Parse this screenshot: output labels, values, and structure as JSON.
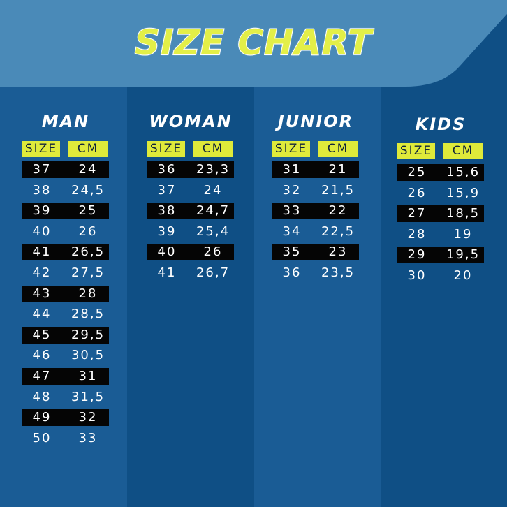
{
  "title": "SIZE CHART",
  "colors": {
    "background": "#0f4f85",
    "banner": "#4a8ab8",
    "accent_yellow": "#dfea3a",
    "row_dark": "#050505",
    "text": "#ffffff"
  },
  "header_labels": {
    "size": "SIZE",
    "cm": "CM"
  },
  "columns": [
    {
      "title": "MAN",
      "rows": [
        [
          "37",
          "24"
        ],
        [
          "38",
          "24,5"
        ],
        [
          "39",
          "25"
        ],
        [
          "40",
          "26"
        ],
        [
          "41",
          "26,5"
        ],
        [
          "42",
          "27,5"
        ],
        [
          "43",
          "28"
        ],
        [
          "44",
          "28,5"
        ],
        [
          "45",
          "29,5"
        ],
        [
          "46",
          "30,5"
        ],
        [
          "47",
          "31"
        ],
        [
          "48",
          "31,5"
        ],
        [
          "49",
          "32"
        ],
        [
          "50",
          "33"
        ]
      ]
    },
    {
      "title": "WOMAN",
      "rows": [
        [
          "36",
          "23,3"
        ],
        [
          "37",
          "24"
        ],
        [
          "38",
          "24,7"
        ],
        [
          "39",
          "25,4"
        ],
        [
          "40",
          "26"
        ],
        [
          "41",
          "26,7"
        ]
      ]
    },
    {
      "title": "JUNIOR",
      "rows": [
        [
          "31",
          "21"
        ],
        [
          "32",
          "21,5"
        ],
        [
          "33",
          "22"
        ],
        [
          "34",
          "22,5"
        ],
        [
          "35",
          "23"
        ],
        [
          "36",
          "23,5"
        ]
      ]
    },
    {
      "title": "KIDS",
      "rows": [
        [
          "25",
          "15,6"
        ],
        [
          "26",
          "15,9"
        ],
        [
          "27",
          "18,5"
        ],
        [
          "28",
          "19"
        ],
        [
          "29",
          "19,5"
        ],
        [
          "30",
          "20"
        ]
      ]
    }
  ]
}
